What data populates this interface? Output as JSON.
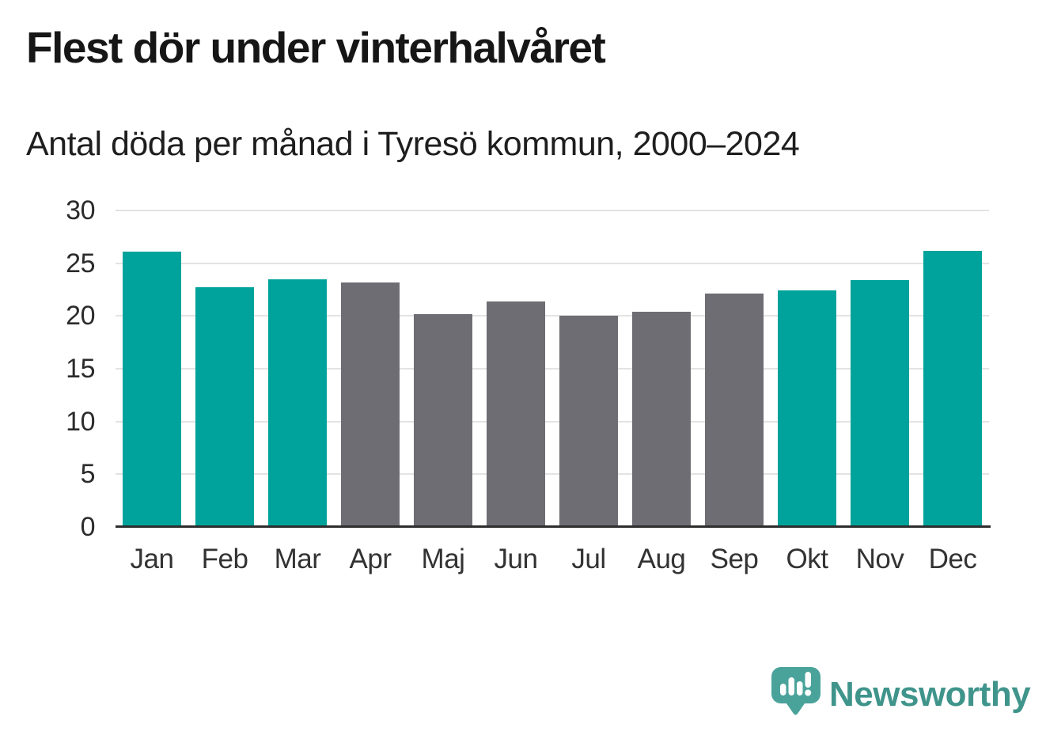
{
  "chart_data": {
    "type": "bar",
    "title": "Flest dör under vinterhalvåret",
    "subtitle": "Antal döda per månad i Tyresö kommun, 2000–2024",
    "categories": [
      "Jan",
      "Feb",
      "Mar",
      "Apr",
      "Maj",
      "Jun",
      "Jul",
      "Aug",
      "Sep",
      "Okt",
      "Nov",
      "Dec"
    ],
    "values": [
      26.1,
      22.7,
      23.5,
      23.2,
      20.2,
      21.4,
      20.0,
      20.4,
      22.1,
      22.4,
      23.4,
      26.2
    ],
    "bar_color_keys": [
      "winter",
      "winter",
      "winter",
      "summer",
      "summer",
      "summer",
      "summer",
      "summer",
      "summer",
      "winter",
      "winter",
      "winter"
    ],
    "palette": {
      "winter": "#00a39b",
      "summer": "#6e6d73"
    },
    "xlabel": "",
    "ylabel": "",
    "ylim": [
      0,
      30
    ],
    "yticks": [
      0,
      5,
      10,
      15,
      20,
      25,
      30
    ],
    "grid": true,
    "legend": "none",
    "gridline_color": "#e3e3e3",
    "axis_line_color": "#2e2e2e"
  },
  "footer": {
    "brand_name": "Newsworthy",
    "brand_color": "#3f948b",
    "logo_icon": "speech-bubble-bar-chart-exclamation-icon",
    "logo_icon_color": "#4aa39a"
  }
}
